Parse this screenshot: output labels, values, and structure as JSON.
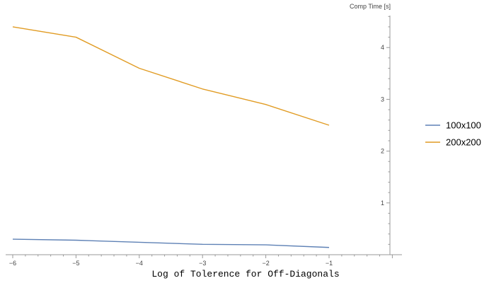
{
  "chart_data": {
    "type": "line",
    "title": "",
    "xlabel": "Log of Tolerence for Off-Diagonals",
    "ylabel": "Comp Time [s]",
    "xlim": [
      -6,
      0
    ],
    "ylim": [
      0,
      4.6
    ],
    "x_ticks": [
      -6,
      -5,
      -4,
      -3,
      -2,
      -1
    ],
    "y_ticks": [
      1,
      2,
      3,
      4
    ],
    "x_tick_labels": [
      "−6",
      "−5",
      "−4",
      "−3",
      "−2",
      "−1"
    ],
    "y_tick_labels": [
      "1",
      "2",
      "3",
      "4"
    ],
    "grid": false,
    "legend_position": "right",
    "series": [
      {
        "name": "100x100",
        "color": "#5E81B5",
        "x": [
          -6,
          -5,
          -4,
          -3,
          -2,
          -1
        ],
        "values": [
          0.3,
          0.28,
          0.24,
          0.2,
          0.19,
          0.14
        ]
      },
      {
        "name": "200x200",
        "color": "#E19C24",
        "x": [
          -6,
          -5,
          -4,
          -3,
          -2,
          -1
        ],
        "values": [
          4.4,
          4.2,
          3.6,
          3.2,
          2.9,
          2.5
        ]
      }
    ]
  }
}
